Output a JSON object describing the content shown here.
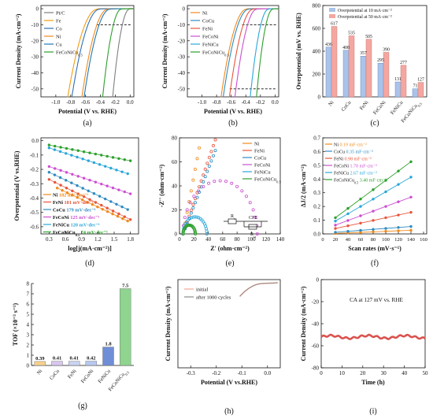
{
  "panel_labels": [
    "(a)",
    "(b)",
    "(c)",
    "(d)",
    "(e)",
    "(f)",
    "(g)",
    "(h)",
    "(i)"
  ],
  "colors": {
    "PtC": "#7f7f7f",
    "Fe": "#f39c12",
    "Co": "#2f6fb5",
    "Ni": "#f08a1c",
    "Cu": "#1f77b4",
    "CoCu": "#2e8bc0",
    "FeNi": "#e8553b",
    "FeCoNi": "#cc4fd1",
    "FeNiCu": "#2aa7d9",
    "FeCoNiCu": "#2ca02c",
    "bar10": "#a9c3ea",
    "bar50": "#f4a6a0",
    "initial": "#f2a793",
    "after": "#8c8c8c",
    "ca": "#d9534f"
  },
  "chart_data": [
    {
      "panel": "a",
      "type": "line",
      "xlabel": "Potential (V vs. RHE)",
      "ylabel": "Current Density (mA·cm⁻²)",
      "xlim": [
        -1.2,
        0.05
      ],
      "ylim": [
        -55,
        2
      ],
      "xticks": [
        "-1.0",
        "-0.8",
        "-0.6",
        "-0.4",
        "-0.2",
        "0.0"
      ],
      "yticks": [
        "0",
        "-10",
        "-20",
        "-30",
        "-40",
        "-50"
      ],
      "legend_position": "top-left",
      "dashed_line_y": -10,
      "series": [
        {
          "name": "Pt/C",
          "onset": -0.01,
          "k": 0.045
        },
        {
          "name": "Fe",
          "onset": -0.44,
          "k": 0.08
        },
        {
          "name": "Co",
          "onset": -0.41,
          "k": 0.075
        },
        {
          "name": "Ni",
          "onset": -0.3,
          "k": 0.07
        },
        {
          "name": "Cu",
          "onset": -0.27,
          "k": 0.07
        },
        {
          "name": "FeCoNiCu",
          "sub": "0.5",
          "onset": -0.12,
          "k": 0.05
        }
      ]
    },
    {
      "panel": "b",
      "type": "line",
      "xlabel": "Potential (V vs. RHE)",
      "ylabel": "Current Density (mA·cm⁻²)",
      "xlim": [
        -1.2,
        0.05
      ],
      "ylim": [
        -55,
        2
      ],
      "xticks": [
        "-1.0",
        "-0.8",
        "-0.6",
        "-0.4",
        "-0.2",
        "0.0"
      ],
      "yticks": [
        "0",
        "-10",
        "-20",
        "-30",
        "-40",
        "-50"
      ],
      "legend_position": "top-left",
      "dashed_line_y": [
        -10,
        -50
      ],
      "series": [
        {
          "name": "Ni",
          "onset": -0.39,
          "k": 0.07
        },
        {
          "name": "CoCu",
          "onset": -0.36,
          "k": 0.07
        },
        {
          "name": "FeNi",
          "onset": -0.3,
          "k": 0.065
        },
        {
          "name": "FeCoNi",
          "onset": -0.25,
          "k": 0.06
        },
        {
          "name": "FeNiCu",
          "onset": -0.09,
          "k": 0.05
        },
        {
          "name": "FeCoNiCu",
          "sub": "0.5",
          "onset": -0.03,
          "k": 0.045
        }
      ]
    },
    {
      "panel": "c",
      "type": "bar",
      "ylabel": "Overpotential (mV vs. RHE)",
      "ylim": [
        0,
        800
      ],
      "yticks": [
        "0",
        "200",
        "400",
        "600",
        "800"
      ],
      "categories": [
        "Ni",
        "CoCu",
        "FeNi",
        "FeCoNi",
        "FeNiCu",
        "FeCoNiCu0.5"
      ],
      "series": [
        {
          "name": "Overpotential at 10 mA·cm⁻²",
          "values": [
            436,
            408,
            357,
            295,
            131,
            71
          ]
        },
        {
          "name": "Overpotential at 50 mA·cm⁻²",
          "values": [
            617,
            535,
            505,
            390,
            277,
            127
          ]
        }
      ]
    },
    {
      "panel": "d",
      "type": "scatter",
      "xlabel": "log[j(mA·cm⁻²)]",
      "ylabel": "Overpotential (V vs.RHE)",
      "xlim": [
        0.15,
        1.95
      ],
      "ylim": [
        -0.65,
        0.02
      ],
      "xticks": [
        "0.3",
        "0.6",
        "0.9",
        "1.2",
        "1.5",
        "1.8"
      ],
      "yticks": [
        "-0.6",
        "-0.5",
        "-0.4",
        "-0.3",
        "-0.2",
        "-0.1",
        "0.0"
      ],
      "series": [
        {
          "name": "Ni",
          "slope": "182 mV·dec⁻¹",
          "x0": 0.45,
          "x1": 1.75,
          "y0": -0.33,
          "y1": -0.56
        },
        {
          "name": "FeNi",
          "slope": "181 mV·dec⁻¹",
          "x0": 0.3,
          "x1": 1.8,
          "y0": -0.27,
          "y1": -0.55
        },
        {
          "name": "CoCu",
          "slope": "179 mV·dec⁻¹",
          "x0": 0.3,
          "x1": 1.75,
          "y0": -0.22,
          "y1": -0.48
        },
        {
          "name": "FeCoNi",
          "slope": "125 mV·dec⁻¹",
          "x0": 0.3,
          "x1": 1.8,
          "y0": -0.18,
          "y1": -0.37
        },
        {
          "name": "FeNiCu",
          "slope": "120 mV·dec⁻¹",
          "x0": 0.3,
          "x1": 1.75,
          "y0": -0.05,
          "y1": -0.23
        },
        {
          "name": "FeCoNiCu",
          "sub": "0.5",
          "slope": "74 mV·dec⁻¹",
          "x0": 0.3,
          "x1": 1.8,
          "y0": -0.03,
          "y1": -0.14
        }
      ]
    },
    {
      "panel": "e",
      "type": "scatter",
      "xlabel": "Z' (ohm·cm⁻²)",
      "ylabel": "-Z'' (ohm·cm⁻²)",
      "xlim": [
        0,
        140
      ],
      "ylim": [
        0,
        80
      ],
      "xticks": [
        "0",
        "20",
        "40",
        "60",
        "80",
        "100",
        "120",
        "140"
      ],
      "yticks": [
        "0",
        "20",
        "40",
        "60",
        "80"
      ],
      "legend_position": "top-right",
      "circuit_labels": [
        "Rs",
        "CPE",
        "Rct"
      ],
      "series": [
        {
          "name": "Ni",
          "shape": "line",
          "x0": 5,
          "slope": 3.2
        },
        {
          "name": "FeNi",
          "shape": "line",
          "x0": 5,
          "slope": 1.75
        },
        {
          "name": "CoCu",
          "shape": "line",
          "x0": 5,
          "slope": 1.55
        },
        {
          "name": "FeCoNi",
          "shape": "arc",
          "x0": 5,
          "x1": 108
        },
        {
          "name": "FeNiCu",
          "shape": "arc",
          "x0": 5,
          "x1": 38
        },
        {
          "name": "FeCoNiCu",
          "sub": "0.5",
          "shape": "arc",
          "x0": 5,
          "x1": 22
        }
      ]
    },
    {
      "panel": "f",
      "type": "scatter",
      "xlabel": "Scan rates (mV·s⁻¹)",
      "ylabel": "ΔJ/2 (mA·cm⁻²)",
      "xlim": [
        0,
        165
      ],
      "ylim": [
        0,
        0.7
      ],
      "xticks": [
        "0",
        "20",
        "40",
        "60",
        "80",
        "100",
        "120",
        "140",
        "160"
      ],
      "yticks": [
        "0.0",
        "0.1",
        "0.2",
        "0.3",
        "0.4",
        "0.5",
        "0.6",
        "0.7"
      ],
      "x": [
        20,
        40,
        60,
        80,
        100,
        120,
        140
      ],
      "series": [
        {
          "name": "Ni",
          "cdl": "0.19 mF·cm⁻²",
          "intercept": 0.0,
          "slope": 0.00019
        },
        {
          "name": "CoCu",
          "cdl": "0.35 mF·cm⁻²",
          "intercept": 0.005,
          "slope": 0.00035
        },
        {
          "name": "FeNi",
          "cdl": "0.98 mF·cm⁻²",
          "intercept": 0.02,
          "slope": 0.00098
        },
        {
          "name": "FeCoNi",
          "cdl": "1.70 mF·cm⁻²",
          "intercept": 0.03,
          "slope": 0.0017
        },
        {
          "name": "FeNiCu",
          "cdl": "2.67 mF·cm⁻²",
          "intercept": 0.04,
          "slope": 0.00267
        },
        {
          "name": "FeCoNiCu",
          "sub": "0.5",
          "cdl": "3.40 mF·cm⁻²",
          "intercept": 0.05,
          "slope": 0.0034
        }
      ]
    },
    {
      "panel": "g",
      "type": "bar",
      "ylabel": "TOF (×10⁻³ s⁻¹)",
      "ylim": [
        0,
        8
      ],
      "yticks": [
        "0",
        "1",
        "2",
        "3",
        "4",
        "5",
        "6",
        "7",
        "8"
      ],
      "categories": [
        "Ni",
        "CoCu",
        "FeNi",
        "FeCoNi",
        "FeNiCu",
        "FeCoNiCu0.5"
      ],
      "values": [
        0.39,
        0.41,
        0.41,
        0.42,
        1.8,
        7.5
      ],
      "labels": [
        "0.39",
        "0.41",
        "0.41",
        "0.42",
        "1.8",
        "7.5"
      ]
    },
    {
      "panel": "h",
      "type": "line",
      "xlabel": "Potential (V vs.RHE)",
      "ylabel": "Current Density (mA·cm⁻²)",
      "xlim": [
        -0.35,
        0.05
      ],
      "xticks": [
        "-0.3",
        "-0.2",
        "-0.1",
        "0.0"
      ],
      "legend_position": "top-left",
      "series": [
        {
          "name": "initial",
          "onset": -0.11
        },
        {
          "name": "after 1000 cycles",
          "onset": -0.112
        }
      ]
    },
    {
      "panel": "i",
      "type": "line",
      "xlabel": "Time (h)",
      "ylabel": "Current Density (mA·cm⁻²)",
      "xlim": [
        0,
        50
      ],
      "ylim": [
        -80,
        0
      ],
      "xticks": [
        "0",
        "10",
        "20",
        "30",
        "40",
        "50"
      ],
      "yticks": [
        "0",
        "-20",
        "-40",
        "-60",
        "-80"
      ],
      "annotation": "CA at 127 mV vs. RHE",
      "series": [
        {
          "name": "CA",
          "mean": -52
        }
      ]
    }
  ]
}
